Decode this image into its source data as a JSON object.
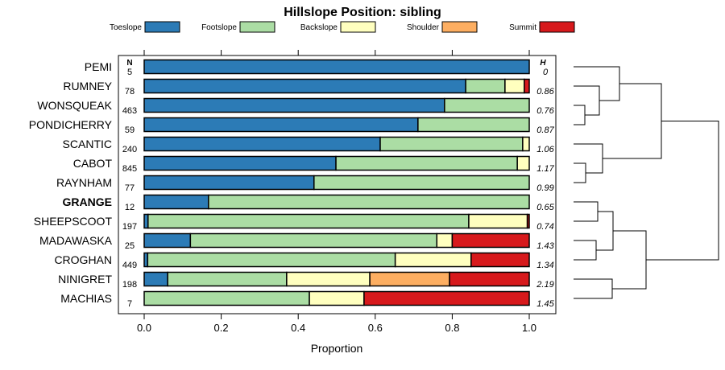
{
  "chart_data": {
    "type": "bar",
    "orientation": "horizontal-stacked",
    "title": "Hillslope Position: sibling",
    "xlabel": "Proportion",
    "ylabel": "",
    "xlim": [
      0,
      1
    ],
    "xticks": [
      "0.0",
      "0.2",
      "0.4",
      "0.6",
      "0.8",
      "1.0"
    ],
    "xtick_values": [
      0,
      0.2,
      0.4,
      0.6,
      0.8,
      1.0
    ],
    "legend_position": "top",
    "n_header": "N",
    "h_header": "H",
    "highlight": "GRANGE",
    "series": [
      {
        "name": "Toeslope",
        "color": "#2C7BB6"
      },
      {
        "name": "Footslope",
        "color": "#ABDDA4"
      },
      {
        "name": "Backslope",
        "color": "#FFFFBF"
      },
      {
        "name": "Shoulder",
        "color": "#FDAE61"
      },
      {
        "name": "Summit",
        "color": "#D7191C"
      }
    ],
    "categories": [
      "PEMI",
      "RUMNEY",
      "WONSQUEAK",
      "PONDICHERRY",
      "SCANTIC",
      "CABOT",
      "RAYNHAM",
      "GRANGE",
      "SHEEPSCOOT",
      "MADAWASKA",
      "CROGHAN",
      "NINIGRET",
      "MACHIAS"
    ],
    "n": [
      "5",
      "78",
      "463",
      "59",
      "240",
      "845",
      "77",
      "12",
      "197",
      "25",
      "449",
      "198",
      "7"
    ],
    "h": [
      "0",
      "0.86",
      "0.76",
      "0.87",
      "1.06",
      "1.17",
      "0.99",
      "0.65",
      "0.74",
      "1.43",
      "1.34",
      "2.19",
      "1.45"
    ],
    "values": [
      [
        1.0,
        0,
        0,
        0,
        0
      ],
      [
        0.835,
        0.102,
        0.05,
        0,
        0.013
      ],
      [
        0.78,
        0.22,
        0,
        0,
        0
      ],
      [
        0.711,
        0.289,
        0,
        0,
        0
      ],
      [
        0.613,
        0.37,
        0.017,
        0,
        0
      ],
      [
        0.498,
        0.471,
        0.031,
        0,
        0
      ],
      [
        0.441,
        0.559,
        0,
        0,
        0
      ],
      [
        0.167,
        0.833,
        0,
        0,
        0
      ],
      [
        0.01,
        0.833,
        0.152,
        0,
        0.005
      ],
      [
        0.12,
        0.64,
        0.04,
        0,
        0.2
      ],
      [
        0.009,
        0.643,
        0.197,
        0,
        0.151
      ],
      [
        0.061,
        0.309,
        0.216,
        0.207,
        0.207
      ],
      [
        0,
        0.429,
        0.142,
        0,
        0.429
      ]
    ],
    "dendrogram": {
      "merges": [
        [
          2,
          3
        ],
        [
          1,
          "a"
        ],
        [
          0,
          "b"
        ],
        [
          5,
          6
        ],
        [
          4,
          "d"
        ],
        [
          "c",
          "e"
        ],
        [
          7,
          8
        ],
        [
          9,
          10
        ],
        [
          "g",
          "h"
        ],
        [
          11,
          12
        ],
        [
          "i",
          "j"
        ],
        [
          "f",
          "k"
        ]
      ]
    }
  }
}
